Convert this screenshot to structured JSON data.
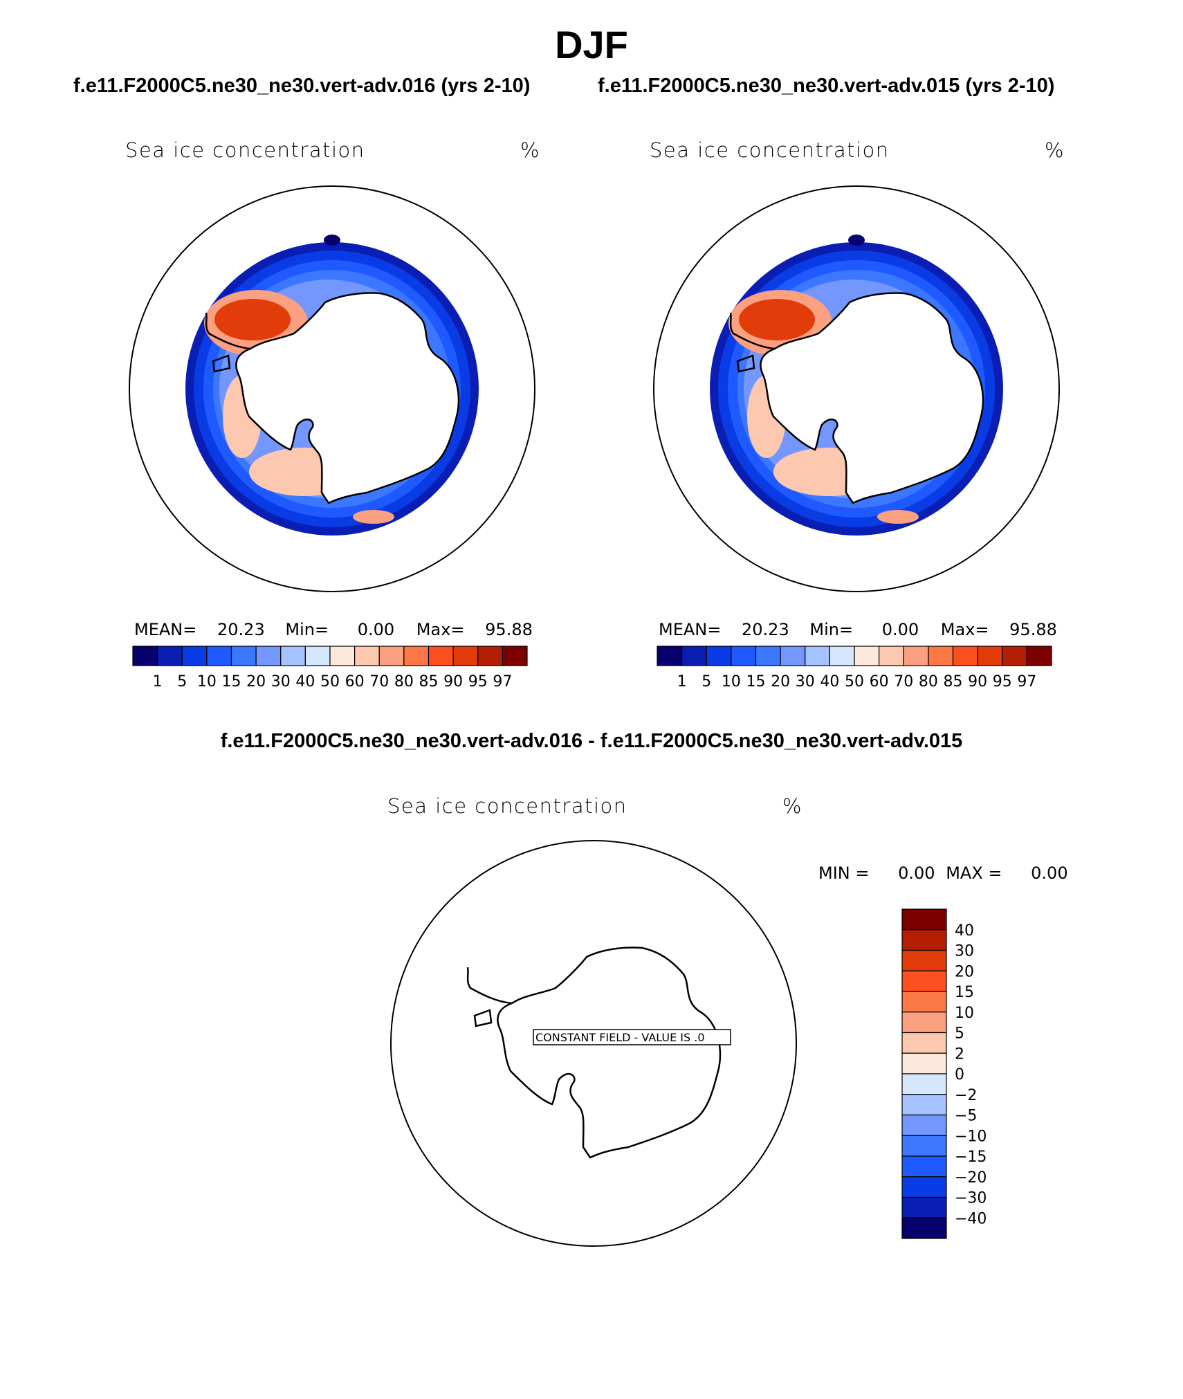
{
  "page": {
    "title": "DJF",
    "case1_title": "f.e11.F2000C5.ne30_ne30.vert-adv.016 (yrs 2-10)",
    "case2_title": "f.e11.F2000C5.ne30_ne30.vert-adv.015 (yrs 2-10)",
    "diff_title": "f.e11.F2000C5.ne30_ne30.vert-adv.016 - f.e11.F2000C5.ne30_ne30.vert-adv.015"
  },
  "chart_data": [
    {
      "type": "heatmap",
      "panel": "case1",
      "variable": "Sea ice concentration",
      "units": "%",
      "stats": {
        "mean_label": "MEAN=",
        "mean": "20.23",
        "min_label": "Min=",
        "min": "0.00",
        "max_label": "Max=",
        "max": "95.88"
      },
      "colorbar": {
        "orientation": "horizontal",
        "labels": [
          "1",
          "5",
          "10",
          "15",
          "20",
          "30",
          "40",
          "50",
          "60",
          "70",
          "80",
          "85",
          "90",
          "95",
          "97"
        ],
        "colors": [
          "#08006e",
          "#0a1eb4",
          "#0a3ce6",
          "#1e5aff",
          "#3c78ff",
          "#7396ff",
          "#a5c3ff",
          "#d7e6ff",
          "#fde9dc",
          "#fcc8b0",
          "#fca082",
          "#fc7846",
          "#fc5020",
          "#e13c0a",
          "#b41e05",
          "#7d0000"
        ]
      }
    },
    {
      "type": "heatmap",
      "panel": "case2",
      "variable": "Sea ice concentration",
      "units": "%",
      "stats": {
        "mean_label": "MEAN=",
        "mean": "20.23",
        "min_label": "Min=",
        "min": "0.00",
        "max_label": "Max=",
        "max": "95.88"
      },
      "colorbar": {
        "orientation": "horizontal",
        "labels": [
          "1",
          "5",
          "10",
          "15",
          "20",
          "30",
          "40",
          "50",
          "60",
          "70",
          "80",
          "85",
          "90",
          "95",
          "97"
        ],
        "colors": [
          "#08006e",
          "#0a1eb4",
          "#0a3ce6",
          "#1e5aff",
          "#3c78ff",
          "#7396ff",
          "#a5c3ff",
          "#d7e6ff",
          "#fde9dc",
          "#fcc8b0",
          "#fca082",
          "#fc7846",
          "#fc5020",
          "#e13c0a",
          "#b41e05",
          "#7d0000"
        ]
      }
    },
    {
      "type": "heatmap",
      "panel": "difference",
      "variable": "Sea ice concentration",
      "units": "%",
      "stats": {
        "min_label": "MIN =",
        "min": "0.00",
        "max_label": "MAX =",
        "max": "0.00"
      },
      "annotation": "CONSTANT FIELD - VALUE IS .0",
      "colorbar": {
        "orientation": "vertical",
        "labels_top_to_bottom": [
          "40",
          "30",
          "20",
          "15",
          "10",
          "5",
          "2",
          "0",
          "−2",
          "−5",
          "−10",
          "−15",
          "−20",
          "−30",
          "−40"
        ],
        "colors_top_to_bottom": [
          "#7d0000",
          "#b41e05",
          "#e13c0a",
          "#fc5020",
          "#fc7846",
          "#fca082",
          "#fcc8b0",
          "#fde9dc",
          "#d7e6ff",
          "#a5c3ff",
          "#7396ff",
          "#3c78ff",
          "#1e5aff",
          "#0a3ce6",
          "#0a1eb4",
          "#08006e"
        ]
      }
    }
  ]
}
